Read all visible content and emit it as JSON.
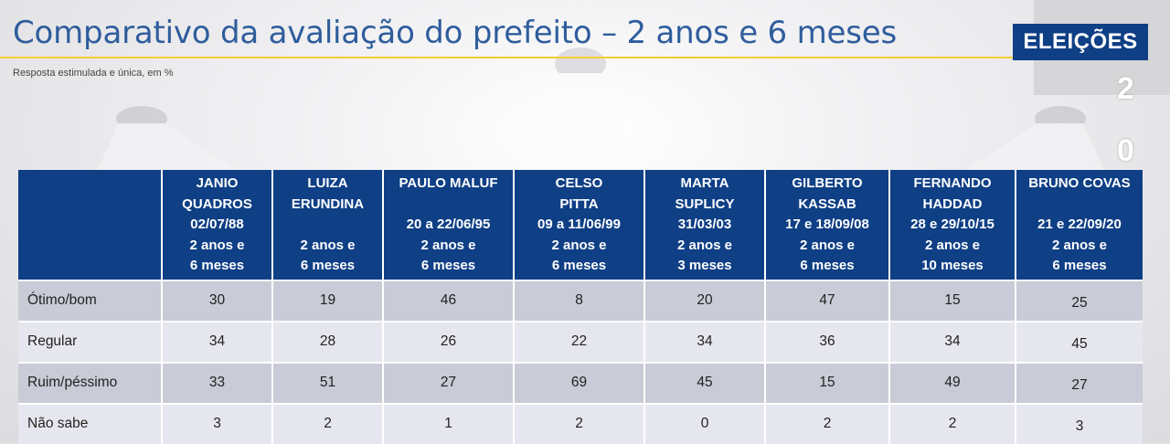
{
  "title": "Comparativo da avaliação do prefeito – 2 anos e 6 meses",
  "subtitle": "Resposta  estimulada e única, em %",
  "badge": {
    "label": "ELEIÇÕES",
    "year_digits": [
      "2",
      "0"
    ]
  },
  "colors": {
    "header_blue": "#0f3f85",
    "title_blue": "#2f5d9c",
    "rule_yellow": "#f2cf33",
    "row_dark": "#c9cbd6",
    "row_light": "#e6e7ee"
  },
  "table": {
    "columns": [
      {
        "line1": "JANIO",
        "line2": "QUADROS",
        "line3": "02/07/88",
        "line4": "2 anos e",
        "line5": "6 meses"
      },
      {
        "line1": "LUIZA",
        "line2": "ERUNDINA",
        "line3": "",
        "line4": "2 anos e",
        "line5": "6 meses"
      },
      {
        "line1": "PAULO MALUF",
        "line2": "",
        "line3": "20 a 22/06/95",
        "line4": "2 anos e",
        "line5": "6 meses"
      },
      {
        "line1": "CELSO",
        "line2": "PITTA",
        "line3": "09 a 11/06/99",
        "line4": "2 anos e",
        "line5": "6 meses"
      },
      {
        "line1": "MARTA",
        "line2": "SUPLICY",
        "line3": "31/03/03",
        "line4": "2 anos e",
        "line5": "3 meses"
      },
      {
        "line1": "GILBERTO",
        "line2": "KASSAB",
        "line3": "17 e 18/09/08",
        "line4": "2 anos e",
        "line5": "6 meses"
      },
      {
        "line1": "FERNANDO",
        "line2": "HADDAD",
        "line3": "28 e 29/10/15",
        "line4": "2 anos e",
        "line5": "10 meses"
      },
      {
        "line1": "BRUNO COVAS",
        "line2": "",
        "line3": "21 e 22/09/20",
        "line4": "2 anos e",
        "line5": "6 meses"
      }
    ],
    "rows": [
      {
        "label": "Ótimo/bom",
        "values": [
          "30",
          "19",
          "46",
          "8",
          "20",
          "47",
          "15",
          "25"
        ]
      },
      {
        "label": "Regular",
        "values": [
          "34",
          "28",
          "26",
          "22",
          "34",
          "36",
          "34",
          "45"
        ]
      },
      {
        "label": "Ruim/péssimo",
        "values": [
          "33",
          "51",
          "27",
          "69",
          "45",
          "15",
          "49",
          "27"
        ]
      },
      {
        "label": "Não sabe",
        "values": [
          "3",
          "2",
          "1",
          "2",
          "0",
          "2",
          "2",
          "3"
        ]
      }
    ]
  }
}
